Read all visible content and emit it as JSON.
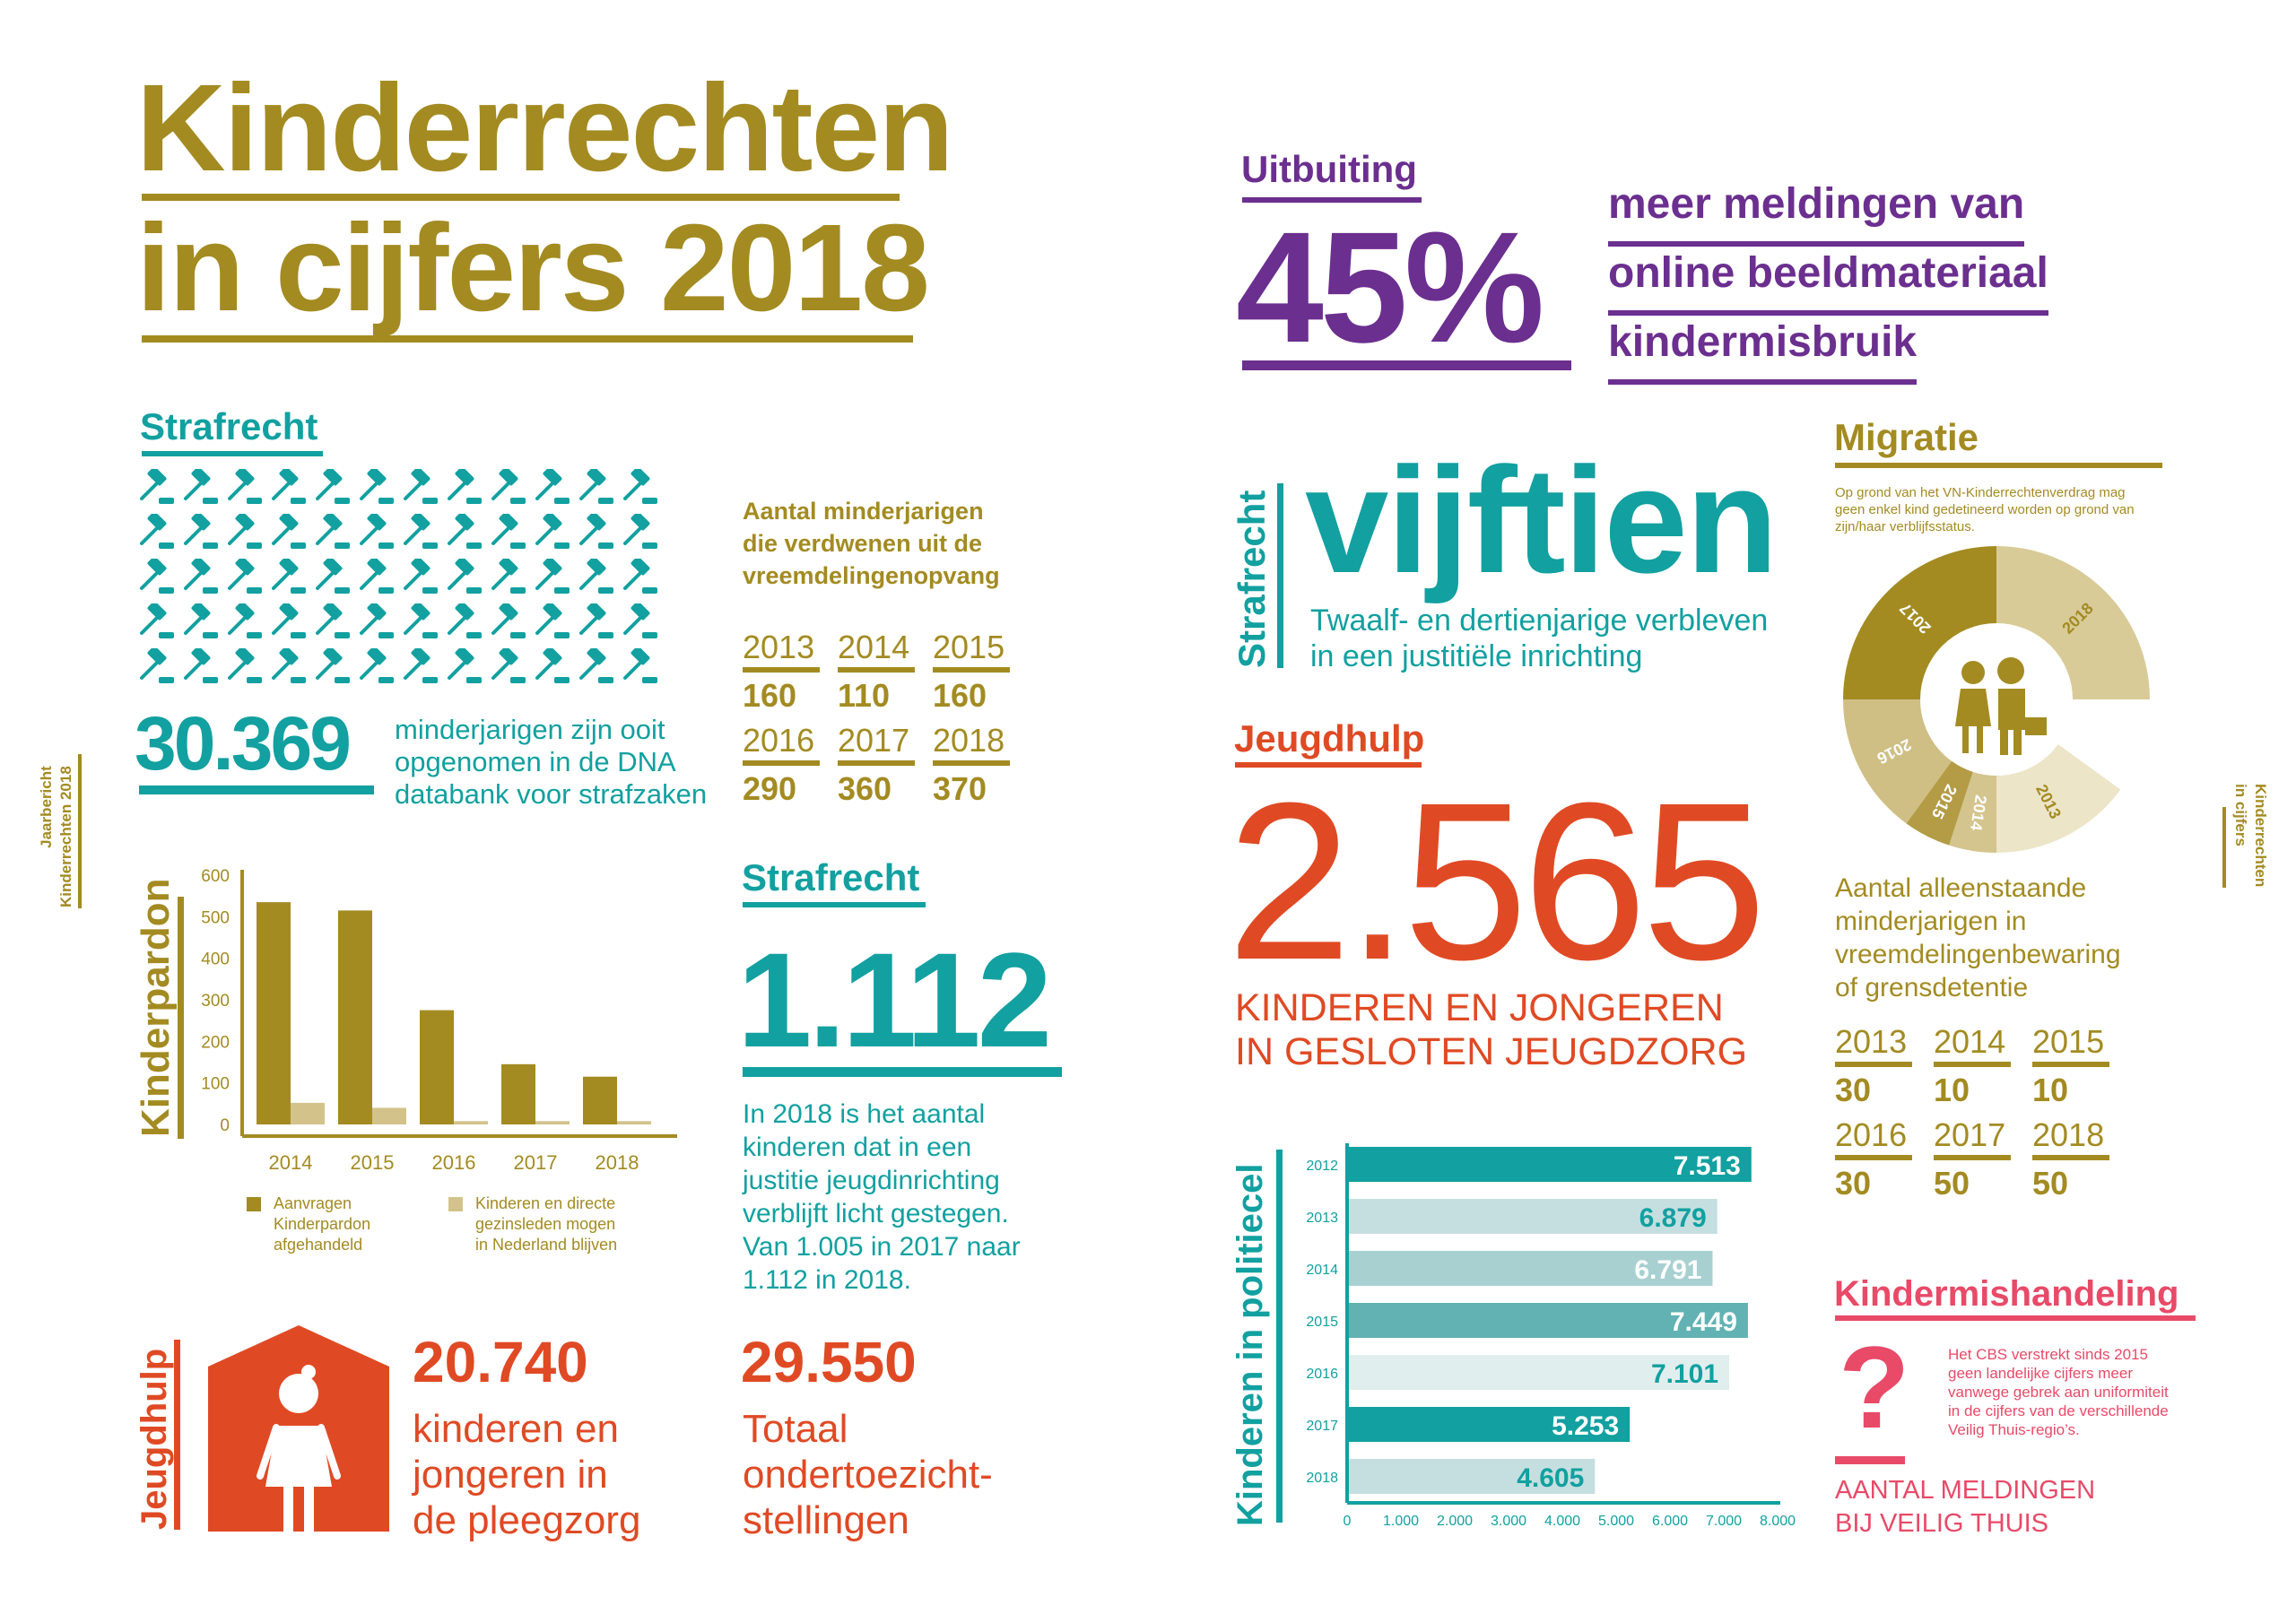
{
  "colors": {
    "gold": "#a38b22",
    "teal": "#12a0a0",
    "purple": "#6b2f8f",
    "orange": "#df4a24",
    "pink": "#e84a68"
  },
  "side_left": {
    "line1": "Jaarbericht",
    "line2": "Kinderrechten 2018"
  },
  "side_right": {
    "line1": "Kinderrechten",
    "line2": "in cijfers"
  },
  "title": {
    "line1": "Kinderrechten",
    "line2": "in cijfers 2018"
  },
  "strafrecht_dna": {
    "heading": "Strafrecht",
    "icon": "gavel-icon",
    "icon_count": 60,
    "number": "30.369",
    "text": [
      "minderjarigen zijn ooit",
      "opgenomen in de DNA",
      "databank voor strafzaken"
    ]
  },
  "verdwenen": {
    "heading": [
      "Aantal minderjarigen",
      "die verdwenen uit de",
      "vreemdelingenopvang"
    ],
    "rows": [
      {
        "year": "2013",
        "value": "160"
      },
      {
        "year": "2014",
        "value": "110"
      },
      {
        "year": "2015",
        "value": "160"
      },
      {
        "year": "2016",
        "value": "290"
      },
      {
        "year": "2017",
        "value": "360"
      },
      {
        "year": "2018",
        "value": "370"
      }
    ]
  },
  "chart_data": [
    {
      "type": "bar",
      "title": "Kinderpardon",
      "categories": [
        "2014",
        "2015",
        "2016",
        "2017",
        "2018"
      ],
      "ylim": [
        0,
        600
      ],
      "yticks": [
        "0",
        "100",
        "200",
        "300",
        "400",
        "500",
        "600"
      ],
      "series": [
        {
          "name": "Aanvragen Kinderpardon afgehandeld",
          "values": [
            535,
            515,
            275,
            145,
            115
          ],
          "color": "#a38b22"
        },
        {
          "name": "Kinderen en directe gezinsleden mogen in Nederland blijven",
          "values": [
            52,
            40,
            8,
            8,
            8
          ],
          "color": "#d3c38b"
        }
      ],
      "legend": [
        [
          "Aanvragen",
          "Kinderpardon",
          "afgehandeld"
        ],
        [
          "Kinderen en directe",
          "gezinsleden mogen",
          "in Nederland blijven"
        ]
      ],
      "legend_position": "bottom"
    },
    {
      "type": "bar",
      "orientation": "horizontal",
      "title": "Kinderen in politiecel",
      "categories": [
        "2012",
        "2013",
        "2014",
        "2015",
        "2016",
        "2017",
        "2018"
      ],
      "values": [
        7513,
        6879,
        6791,
        7449,
        7101,
        5253,
        4605
      ],
      "labels": [
        "7.513",
        "6.879",
        "6.791",
        "7.449",
        "7.101",
        "5.253",
        "4.605"
      ],
      "xlim": [
        0,
        8000
      ],
      "xticks": [
        "0",
        "1.000",
        "2.000",
        "3.000",
        "4.000",
        "5.000",
        "6.000",
        "7.000",
        "8.000"
      ],
      "bar_colors": [
        "#12a0a0",
        "#c5dfe0",
        "#a8d0d1",
        "#62b2b3",
        "#e1eeee",
        "#12a0a0",
        "#c5dfe0"
      ],
      "label_colors": [
        "#ffffff",
        "#12a0a0",
        "#ffffff",
        "#ffffff",
        "#12a0a0",
        "#ffffff",
        "#12a0a0"
      ]
    },
    {
      "type": "pie",
      "variant": "donut",
      "title": "Migratie",
      "categories": [
        "2013",
        "2014",
        "2015",
        "2016",
        "2017",
        "2018"
      ],
      "values": [
        30,
        10,
        10,
        30,
        50,
        50
      ],
      "colors": [
        "#ede5c8",
        "#d4c48d",
        "#b39c45",
        "#cfbf85",
        "#a38b22",
        "#d9cb98"
      ],
      "label_colors": [
        "#a38b22",
        "#ffffff",
        "#ffffff",
        "#ffffff",
        "#ffffff",
        "#a38b22"
      ]
    }
  ],
  "strafrecht_jji": {
    "heading": "Strafrecht",
    "number": "1.112",
    "text": [
      "In 2018 is het aantal",
      "kinderen dat in een",
      "justitie jeugdinrichting",
      "verblijft licht gestegen.",
      "Van 1.005 in 2017 naar",
      "1.112 in 2018."
    ]
  },
  "jeugdhulp_pleeg": {
    "label": "Jeugdhulp",
    "number": "20.740",
    "text": [
      "kinderen en",
      "jongeren in",
      "de pleegzorg"
    ]
  },
  "ots": {
    "number": "29.550",
    "text": [
      "Totaal",
      "ondertoezicht-",
      "stellingen"
    ]
  },
  "uitbuiting": {
    "heading": "Uitbuiting",
    "number": "45%",
    "text": [
      "meer meldingen van",
      "online beeldmateriaal",
      "kindermisbruik"
    ]
  },
  "vijftien": {
    "label": "Strafrecht",
    "number": "vijftien",
    "text": [
      "Twaalf- en dertienjarige verbleven",
      "in een justitiële inrichting"
    ]
  },
  "jeugdzorg": {
    "heading": "Jeugdhulp",
    "number": "2.565",
    "text": [
      "KINDEREN EN JONGEREN",
      "IN GESLOTEN JEUGDZORG"
    ]
  },
  "politiecel": {
    "label": "Kinderen in politiecel"
  },
  "migratie": {
    "heading": "Migratie",
    "note": [
      "Op grond van het VN-Kinderrechtenverdrag mag",
      "geen enkel kind gedetineerd worden op grond van",
      "zijn/haar verblijfsstatus."
    ],
    "caption": [
      "Aantal alleenstaande",
      "minderjarigen in",
      "vreemdelingenbewaring",
      "of grensdetentie"
    ],
    "rows": [
      {
        "year": "2013",
        "value": "30"
      },
      {
        "year": "2014",
        "value": "10"
      },
      {
        "year": "2015",
        "value": "10"
      },
      {
        "year": "2016",
        "value": "30"
      },
      {
        "year": "2017",
        "value": "50"
      },
      {
        "year": "2018",
        "value": "50"
      }
    ]
  },
  "kindermishandeling": {
    "heading": "Kindermishandeling",
    "symbol": "?",
    "note": [
      "Het CBS verstrekt sinds 2015",
      "geen landelijke cijfers meer",
      "vanwege gebrek aan uniformiteit",
      "in de cijfers van de verschillende",
      "Veilig Thuis-regio’s."
    ],
    "caption": [
      "AANTAL MELDINGEN",
      "BIJ VEILIG THUIS"
    ]
  }
}
